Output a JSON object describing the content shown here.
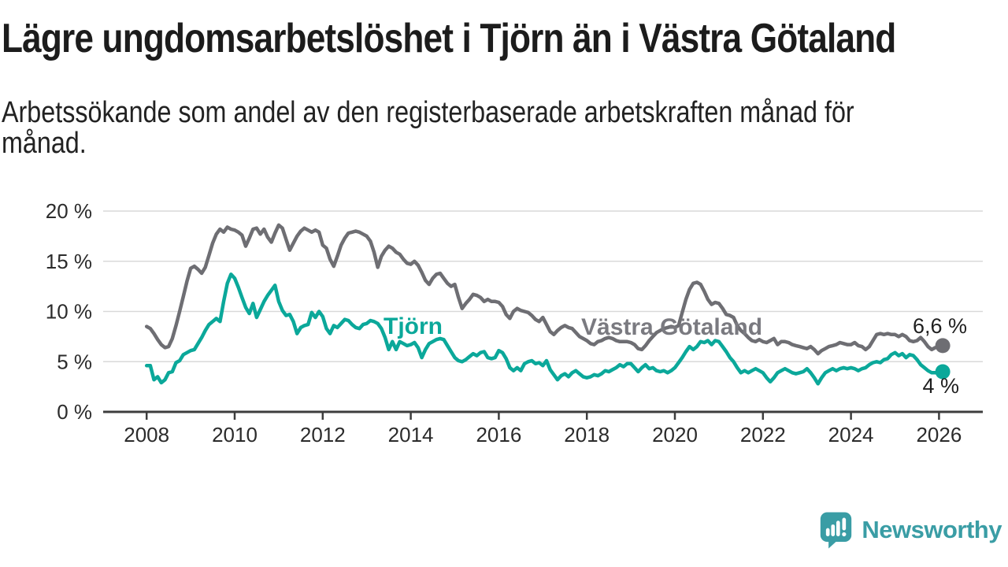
{
  "header": {
    "title": "Lägre ungdomsarbetslöshet i Tjörn än i Västra Götaland",
    "subtitle": "Arbetssökande som andel av den registerbaserade arbetskraften månad för månad."
  },
  "chart_data": {
    "type": "line",
    "title": "Lägre ungdomsarbetslöshet i Tjörn än i Västra Götaland",
    "xlabel": "",
    "ylabel": "",
    "unit": "%",
    "ylim": [
      0,
      20
    ],
    "grid": "horizontal",
    "legend_position": "inline-labels-on-lines",
    "x_start_year": 2008,
    "points_per_year": 12,
    "x_end": "2026-02",
    "y_ticks": [
      {
        "value": 0,
        "label": "0 %"
      },
      {
        "value": 5,
        "label": "5 %"
      },
      {
        "value": 10,
        "label": "10 %"
      },
      {
        "value": 15,
        "label": "15 %"
      },
      {
        "value": 20,
        "label": "20 %"
      }
    ],
    "x_ticks": [
      {
        "year": 2008,
        "label": "2008"
      },
      {
        "year": 2010,
        "label": "2010"
      },
      {
        "year": 2012,
        "label": "2012"
      },
      {
        "year": 2014,
        "label": "2014"
      },
      {
        "year": 2016,
        "label": "2016"
      },
      {
        "year": 2018,
        "label": "2018"
      },
      {
        "year": 2020,
        "label": "2020"
      },
      {
        "year": 2022,
        "label": "2022"
      },
      {
        "year": 2024,
        "label": "2024"
      },
      {
        "year": 2026,
        "label": "2026"
      }
    ],
    "series": [
      {
        "name": "Västra Götaland",
        "color": "#6e6e73",
        "label_color": "#7a7a80",
        "end_label": "6,6 %",
        "end_value": 6.6,
        "values": [
          8.5,
          8.3,
          7.8,
          7.2,
          6.7,
          6.4,
          6.5,
          7.3,
          8.6,
          10.0,
          11.5,
          13.0,
          14.3,
          14.5,
          14.2,
          13.8,
          14.4,
          15.6,
          16.8,
          17.7,
          18.2,
          17.9,
          18.4,
          18.2,
          18.1,
          17.9,
          17.6,
          16.5,
          17.3,
          18.2,
          18.3,
          17.7,
          18.2,
          17.4,
          16.9,
          17.8,
          18.6,
          18.3,
          17.2,
          16.1,
          16.8,
          17.5,
          18.0,
          18.3,
          18.1,
          17.9,
          18.1,
          17.9,
          16.6,
          16.3,
          15.2,
          14.5,
          15.5,
          16.6,
          17.3,
          17.8,
          17.9,
          18.0,
          17.9,
          17.7,
          17.5,
          17.0,
          15.9,
          14.4,
          15.5,
          16.1,
          16.5,
          16.3,
          15.9,
          15.7,
          15.2,
          14.8,
          14.7,
          15.0,
          14.6,
          13.9,
          13.1,
          12.7,
          13.3,
          13.7,
          13.8,
          13.3,
          12.8,
          12.5,
          12.7,
          11.4,
          10.3,
          10.8,
          11.2,
          11.7,
          11.6,
          11.4,
          11.0,
          11.2,
          11.0,
          11.0,
          10.9,
          10.5,
          9.7,
          9.3,
          10.0,
          10.3,
          10.1,
          10.0,
          9.9,
          9.6,
          9.2,
          9.0,
          9.4,
          8.7,
          8.0,
          7.7,
          8.1,
          8.4,
          8.6,
          8.4,
          8.3,
          7.9,
          7.5,
          7.3,
          7.1,
          6.8,
          6.7,
          7.0,
          7.1,
          7.3,
          7.4,
          7.3,
          7.1,
          7.0,
          7.0,
          7.0,
          6.9,
          6.7,
          6.3,
          6.2,
          6.6,
          7.1,
          7.5,
          7.9,
          8.1,
          8.3,
          8.4,
          8.5,
          8.4,
          8.6,
          9.9,
          11.2,
          12.2,
          12.8,
          12.9,
          12.7,
          12.0,
          11.2,
          10.7,
          10.9,
          10.8,
          10.3,
          9.7,
          9.6,
          9.4,
          8.6,
          8.1,
          7.8,
          7.4,
          7.1,
          7.0,
          7.2,
          7.0,
          6.9,
          7.1,
          7.3,
          6.7,
          7.0,
          7.0,
          6.9,
          6.7,
          6.6,
          6.5,
          6.4,
          6.3,
          6.5,
          6.2,
          5.8,
          6.1,
          6.3,
          6.5,
          6.6,
          6.7,
          6.9,
          6.8,
          6.7,
          6.7,
          6.9,
          6.6,
          6.5,
          6.2,
          6.5,
          7.1,
          7.7,
          7.8,
          7.7,
          7.8,
          7.7,
          7.7,
          7.5,
          7.7,
          7.5,
          7.1,
          7.0,
          7.1,
          7.4,
          7.0,
          6.5,
          6.2,
          6.4,
          6.5,
          6.6
        ]
      },
      {
        "name": "Tjörn",
        "color": "#0ba89a",
        "label_color": "#0ba89a",
        "end_label": "4 %",
        "end_value": 4.0,
        "values": [
          4.6,
          4.6,
          3.2,
          3.5,
          2.9,
          3.2,
          3.9,
          4.0,
          4.9,
          5.1,
          5.7,
          5.9,
          6.1,
          6.2,
          6.8,
          7.4,
          8.1,
          8.7,
          9.0,
          9.3,
          9.0,
          11.0,
          12.8,
          13.7,
          13.3,
          12.4,
          11.4,
          10.4,
          9.8,
          10.8,
          9.4,
          10.2,
          11.0,
          11.6,
          12.1,
          12.6,
          11.0,
          10.1,
          9.6,
          9.7,
          9.0,
          7.8,
          8.4,
          8.6,
          8.7,
          9.9,
          9.4,
          10.0,
          9.5,
          8.3,
          7.8,
          8.6,
          8.4,
          8.8,
          9.2,
          9.1,
          8.7,
          8.4,
          8.3,
          8.7,
          8.8,
          9.1,
          9.0,
          8.8,
          8.3,
          7.4,
          6.2,
          7.0,
          6.2,
          7.0,
          6.8,
          6.6,
          6.7,
          6.9,
          6.4,
          5.4,
          6.2,
          6.8,
          7.0,
          7.2,
          7.3,
          7.2,
          6.6,
          6.0,
          5.4,
          5.1,
          5.0,
          5.2,
          5.5,
          5.8,
          5.6,
          5.9,
          6.0,
          5.4,
          5.3,
          5.4,
          6.1,
          5.9,
          5.3,
          4.4,
          4.1,
          4.4,
          4.1,
          4.8,
          5.0,
          5.1,
          4.8,
          4.9,
          4.6,
          5.1,
          4.2,
          3.7,
          3.2,
          3.6,
          3.8,
          3.5,
          3.9,
          4.1,
          3.8,
          3.5,
          3.4,
          3.5,
          3.7,
          3.6,
          3.8,
          4.1,
          4.0,
          4.2,
          4.4,
          4.7,
          4.5,
          4.8,
          4.8,
          4.4,
          4.0,
          4.4,
          4.7,
          4.3,
          4.4,
          4.1,
          4.0,
          4.1,
          3.9,
          4.1,
          4.4,
          4.9,
          5.4,
          6.0,
          6.5,
          6.2,
          6.5,
          7.0,
          6.9,
          7.1,
          6.7,
          7.1,
          7.0,
          6.5,
          6.0,
          5.4,
          5.0,
          4.4,
          3.9,
          4.1,
          3.9,
          4.1,
          4.3,
          4.1,
          3.9,
          3.4,
          3.0,
          3.4,
          3.9,
          4.1,
          4.3,
          4.1,
          3.9,
          3.8,
          3.9,
          4.0,
          4.3,
          3.9,
          3.4,
          2.8,
          3.4,
          3.9,
          4.1,
          4.3,
          4.1,
          4.3,
          4.4,
          4.3,
          4.4,
          4.3,
          4.1,
          4.3,
          4.4,
          4.7,
          4.9,
          5.0,
          4.9,
          5.2,
          5.3,
          5.7,
          5.9,
          5.6,
          5.8,
          5.4,
          5.7,
          5.6,
          5.2,
          4.7,
          4.4,
          4.1,
          3.9,
          3.9,
          4.0,
          4.0
        ]
      }
    ]
  },
  "branding": {
    "logo_text": "Newsworthy",
    "logo_color": "#3a9da5"
  }
}
